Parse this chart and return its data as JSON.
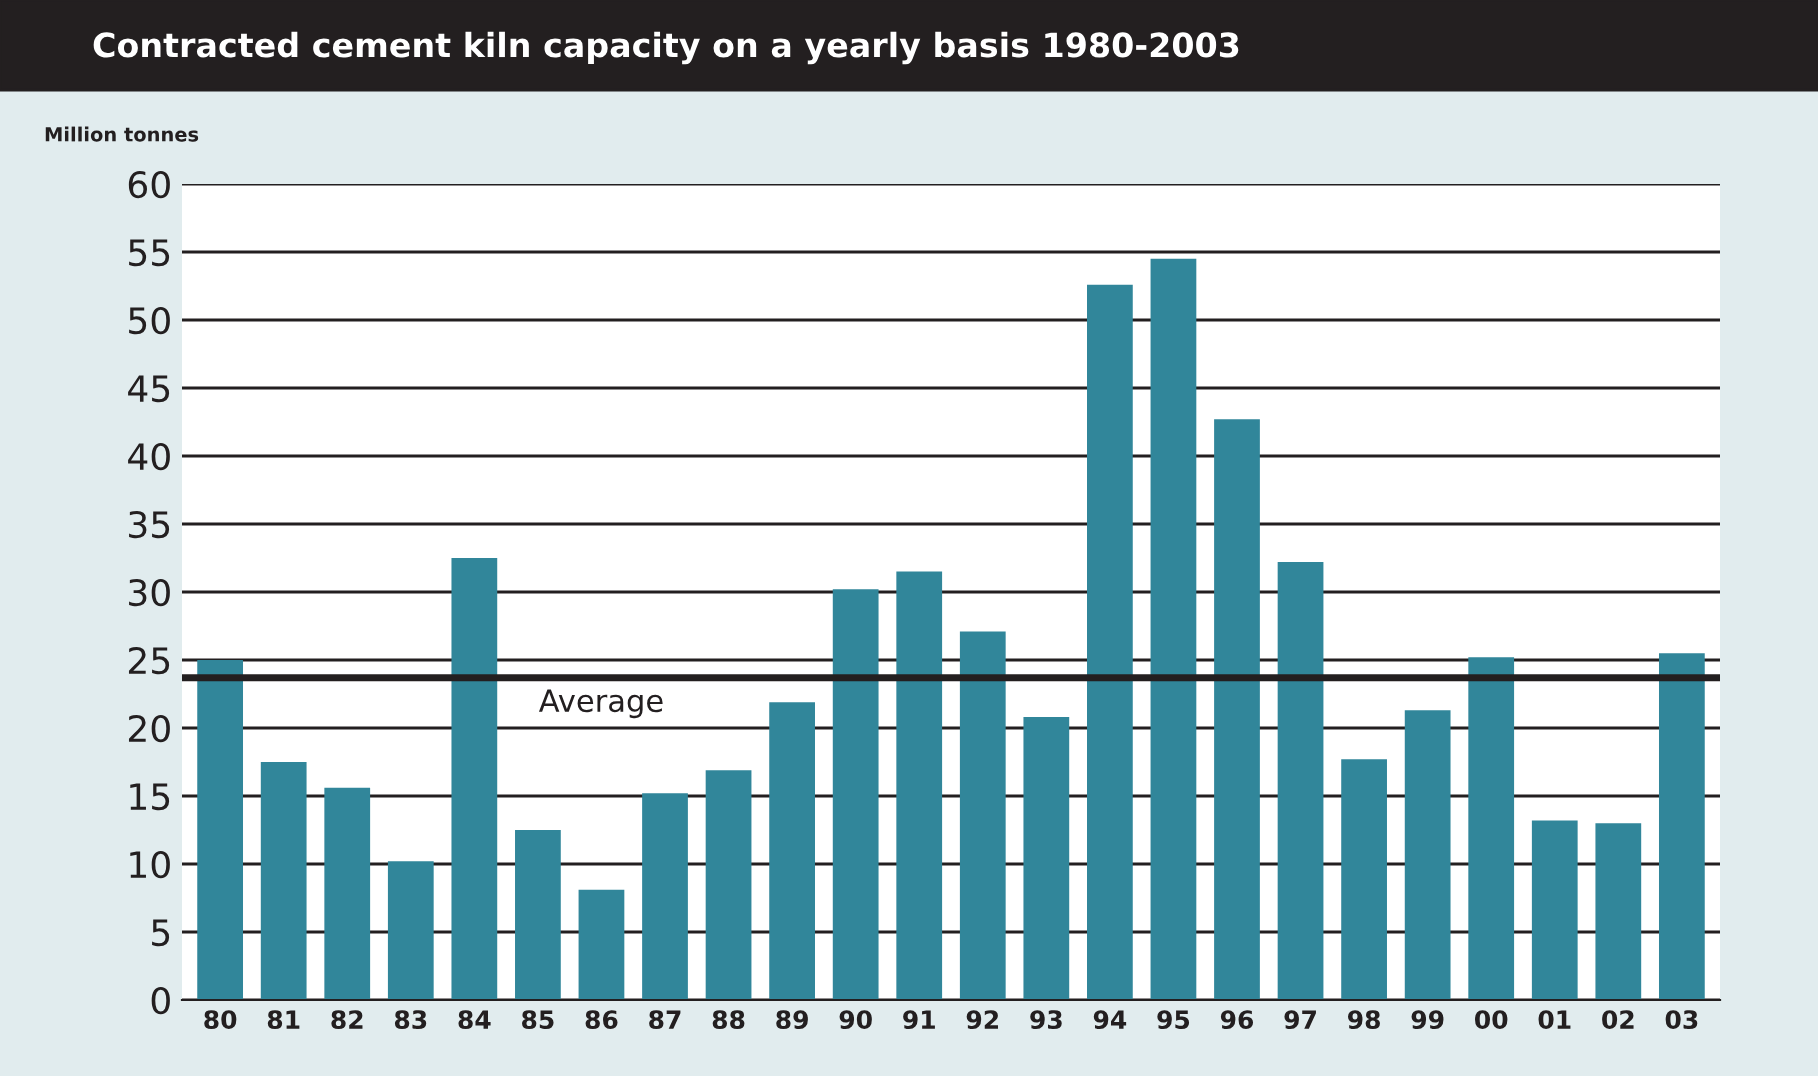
{
  "chart_data": {
    "type": "bar",
    "title": "Contracted cement kiln capacity on a yearly basis 1980-2003",
    "ylabel": "Million tonnes",
    "categories": [
      "80",
      "81",
      "82",
      "83",
      "84",
      "85",
      "86",
      "87",
      "88",
      "89",
      "90",
      "91",
      "92",
      "93",
      "94",
      "95",
      "96",
      "97",
      "98",
      "99",
      "00",
      "01",
      "02",
      "03"
    ],
    "values": [
      25.0,
      17.5,
      15.6,
      10.2,
      32.5,
      12.5,
      8.1,
      15.2,
      16.9,
      21.9,
      30.2,
      31.5,
      27.1,
      20.8,
      52.6,
      54.5,
      42.7,
      32.2,
      17.7,
      21.3,
      25.2,
      13.2,
      13.0,
      25.5
    ],
    "color": "#31869a",
    "ylim": [
      0,
      60
    ],
    "yticks": [
      0,
      5,
      10,
      15,
      20,
      25,
      30,
      35,
      40,
      45,
      50,
      55,
      60
    ],
    "grid": "y",
    "legend": false,
    "ref_lines": [
      {
        "axis": "y",
        "value": 23.7,
        "label": "Average",
        "color": "#231f20"
      }
    ]
  }
}
